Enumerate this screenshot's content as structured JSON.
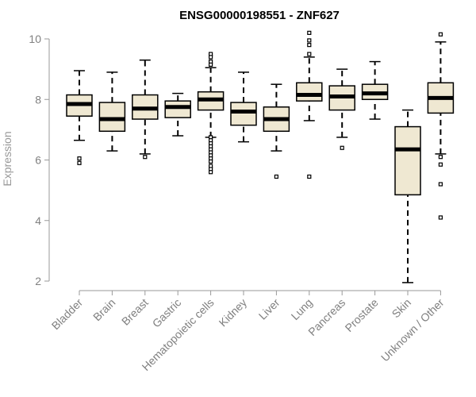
{
  "chart_data": {
    "type": "boxplot",
    "title": "ENSG00000198551 - ZNF627",
    "xlabel": "",
    "ylabel": "Expression",
    "ylim": [
      2,
      10
    ],
    "yticks": [
      2,
      4,
      6,
      8,
      10
    ],
    "grid": false,
    "legend": "none",
    "colors": {
      "box_fill": "#efe8d2",
      "box_stroke": "#000000",
      "median": "#000000",
      "axis": "#999999",
      "tick_text": "#808080"
    },
    "categories": [
      "Bladder",
      "Brain",
      "Breast",
      "Gastric",
      "Hematopoietic cells",
      "Kidney",
      "Liver",
      "Lung",
      "Pancreas",
      "Prostate",
      "Skin",
      "Unknown / Other"
    ],
    "boxes": [
      {
        "category": "Bladder",
        "whisker_low": 6.65,
        "q1": 7.45,
        "median": 7.85,
        "q3": 8.15,
        "whisker_high": 8.95,
        "outliers": [
          6.05,
          5.9
        ]
      },
      {
        "category": "Brain",
        "whisker_low": 6.3,
        "q1": 6.95,
        "median": 7.35,
        "q3": 7.9,
        "whisker_high": 8.9,
        "outliers": []
      },
      {
        "category": "Breast",
        "whisker_low": 6.2,
        "q1": 7.35,
        "median": 7.7,
        "q3": 8.15,
        "whisker_high": 9.3,
        "outliers": [
          6.1
        ]
      },
      {
        "category": "Gastric",
        "whisker_low": 6.8,
        "q1": 7.4,
        "median": 7.75,
        "q3": 7.95,
        "whisker_high": 8.2,
        "outliers": []
      },
      {
        "category": "Hematopoietic cells",
        "whisker_low": 6.75,
        "q1": 7.65,
        "median": 8.0,
        "q3": 8.25,
        "whisker_high": 9.05,
        "outliers": [
          9.5,
          9.4,
          9.25,
          9.15,
          6.75,
          6.65,
          6.55,
          6.45,
          6.35,
          6.25,
          6.15,
          6.05,
          5.95,
          5.8,
          5.7,
          5.6
        ]
      },
      {
        "category": "Kidney",
        "whisker_low": 6.6,
        "q1": 7.15,
        "median": 7.6,
        "q3": 7.9,
        "whisker_high": 8.9,
        "outliers": []
      },
      {
        "category": "Liver",
        "whisker_low": 6.3,
        "q1": 6.95,
        "median": 7.35,
        "q3": 7.75,
        "whisker_high": 8.5,
        "outliers": [
          5.45
        ]
      },
      {
        "category": "Lung",
        "whisker_low": 7.3,
        "q1": 7.95,
        "median": 8.15,
        "q3": 8.55,
        "whisker_high": 9.4,
        "outliers": [
          10.2,
          9.95,
          9.8,
          9.5,
          5.45
        ]
      },
      {
        "category": "Pancreas",
        "whisker_low": 6.75,
        "q1": 7.65,
        "median": 8.1,
        "q3": 8.45,
        "whisker_high": 9.0,
        "outliers": [
          6.4
        ]
      },
      {
        "category": "Prostate",
        "whisker_low": 7.35,
        "q1": 8.0,
        "median": 8.2,
        "q3": 8.5,
        "whisker_high": 9.25,
        "outliers": []
      },
      {
        "category": "Skin",
        "whisker_low": 1.95,
        "q1": 4.85,
        "median": 6.35,
        "q3": 7.1,
        "whisker_high": 7.65,
        "outliers": []
      },
      {
        "category": "Unknown / Other",
        "whisker_low": 6.2,
        "q1": 7.55,
        "median": 8.05,
        "q3": 8.55,
        "whisker_high": 9.9,
        "outliers": [
          10.15,
          6.1,
          5.85,
          5.2,
          4.1
        ]
      }
    ]
  }
}
